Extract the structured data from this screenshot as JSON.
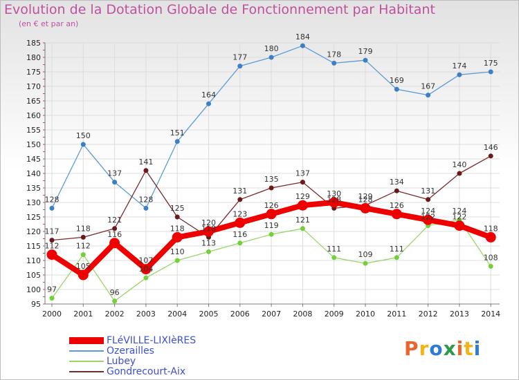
{
  "title": "Evolution de la Dotation Globale de Fonctionnement par Habitant",
  "subtitle": "(en € et par an)",
  "logo": {
    "text": "Proxiti",
    "colors": [
      "#e8662e",
      "#f2b416",
      "#2d7bd6",
      "#2d9a4a"
    ]
  },
  "chart_data": {
    "type": "line",
    "title": "Evolution de la Dotation Globale de Fonctionnement par Habitant",
    "subtitle": "(en € et par an)",
    "xlabel": "",
    "ylabel": "",
    "ylim": [
      95,
      185
    ],
    "y_ticks": [
      95,
      100,
      105,
      110,
      115,
      120,
      125,
      130,
      135,
      140,
      145,
      150,
      155,
      160,
      165,
      170,
      175,
      180,
      185
    ],
    "x": [
      "2000",
      "2001",
      "2002",
      "2003",
      "2004",
      "2005",
      "2006",
      "2007",
      "2008",
      "2009",
      "2010",
      "2011",
      "2012",
      "2013",
      "2014"
    ],
    "series": [
      {
        "name": "FLéVILLE-LIXIèRES",
        "color": "#ee0000",
        "values": [
          112,
          105,
          116,
          107,
          118,
          120,
          123,
          126,
          129,
          130,
          128,
          126,
          124,
          122,
          118
        ]
      },
      {
        "name": "Ozerailles",
        "color": "#5b9bd5",
        "values": [
          128,
          150,
          137,
          128,
          151,
          164,
          177,
          180,
          184,
          178,
          179,
          169,
          167,
          174,
          175
        ]
      },
      {
        "name": "Lubey",
        "color": "#9ad56a",
        "values": [
          97,
          112,
          96,
          104,
          110,
          113,
          116,
          119,
          121,
          111,
          109,
          111,
          122,
          124,
          108
        ]
      },
      {
        "name": "Gondrecourt-Aix",
        "color": "#7a2a2a",
        "values": [
          117,
          118,
          121,
          141,
          125,
          118,
          131,
          135,
          137,
          128,
          129,
          134,
          131,
          140,
          146
        ]
      }
    ],
    "legend": "bottom-left"
  }
}
